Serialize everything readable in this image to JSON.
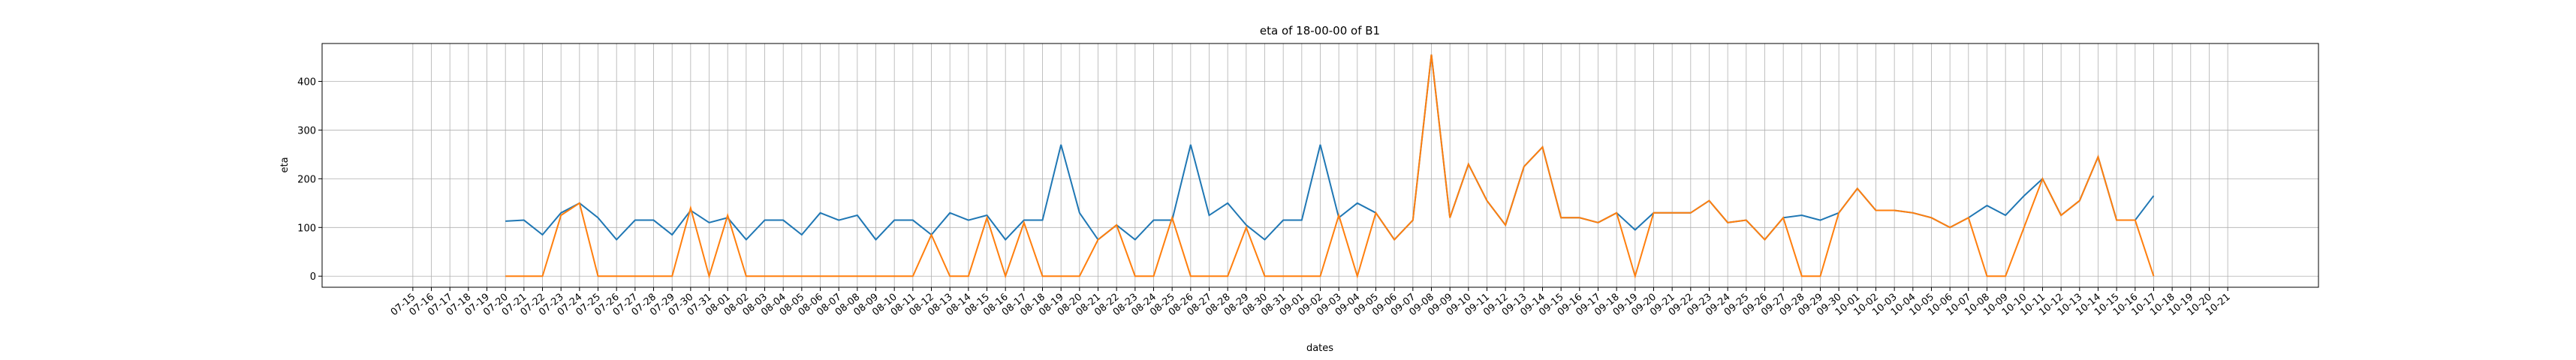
{
  "chart_data": {
    "type": "line",
    "title": "eta of 18-00-00 of B1",
    "xlabel": "dates",
    "ylabel": "eta",
    "categories": [
      "07-15",
      "07-16",
      "07-17",
      "07-18",
      "07-19",
      "07-20",
      "07-21",
      "07-22",
      "07-23",
      "07-24",
      "07-25",
      "07-26",
      "07-27",
      "07-28",
      "07-29",
      "07-30",
      "07-31",
      "08-01",
      "08-02",
      "08-03",
      "08-04",
      "08-05",
      "08-06",
      "08-07",
      "08-08",
      "08-09",
      "08-10",
      "08-11",
      "08-12",
      "08-13",
      "08-14",
      "08-15",
      "08-16",
      "08-17",
      "08-18",
      "08-19",
      "08-20",
      "08-21",
      "08-22",
      "08-23",
      "08-24",
      "08-25",
      "08-26",
      "08-27",
      "08-28",
      "08-29",
      "08-30",
      "08-31",
      "09-01",
      "09-02",
      "09-03",
      "09-04",
      "09-05",
      "09-06",
      "09-07",
      "09-08",
      "09-09",
      "09-10",
      "09-11",
      "09-12",
      "09-13",
      "09-14",
      "09-15",
      "09-16",
      "09-17",
      "09-18",
      "09-19",
      "09-20",
      "09-21",
      "09-22",
      "09-23",
      "09-24",
      "09-25",
      "09-26",
      "09-27",
      "09-28",
      "09-29",
      "09-30",
      "10-01",
      "10-02",
      "10-03",
      "10-04",
      "10-05",
      "10-06",
      "10-07",
      "10-08",
      "10-09",
      "10-10",
      "10-11",
      "10-12",
      "10-13",
      "10-14",
      "10-15",
      "10-16",
      "10-17",
      "10-18",
      "10-19",
      "10-20",
      "10-21"
    ],
    "series": [
      {
        "color": "#1f77b4",
        "values": [
          null,
          null,
          null,
          null,
          null,
          113,
          115,
          85,
          130,
          150,
          120,
          75,
          115,
          115,
          85,
          135,
          110,
          120,
          75,
          115,
          115,
          85,
          130,
          115,
          125,
          75,
          115,
          115,
          85,
          130,
          115,
          125,
          75,
          115,
          115,
          270,
          130,
          75,
          105,
          75,
          115,
          115,
          270,
          125,
          150,
          105,
          75,
          115,
          115,
          270,
          120,
          150,
          130,
          75,
          115,
          455,
          120,
          230,
          155,
          105,
          225,
          265,
          120,
          120,
          110,
          130,
          95,
          130,
          130,
          130,
          155,
          110,
          115,
          75,
          120,
          125,
          115,
          130,
          180,
          135,
          135,
          130,
          120,
          100,
          120,
          145,
          125,
          165,
          200,
          125,
          155,
          245,
          115,
          115,
          165,
          null,
          null,
          null,
          null
        ]
      },
      {
        "color": "#ff7f0e",
        "values": [
          null,
          null,
          null,
          null,
          null,
          0,
          0,
          0,
          125,
          150,
          0,
          0,
          0,
          0,
          0,
          140,
          0,
          125,
          0,
          0,
          0,
          0,
          0,
          0,
          0,
          0,
          0,
          0,
          85,
          0,
          0,
          120,
          0,
          110,
          0,
          0,
          0,
          75,
          105,
          0,
          0,
          120,
          0,
          0,
          0,
          100,
          0,
          0,
          0,
          0,
          125,
          0,
          130,
          75,
          115,
          455,
          120,
          230,
          155,
          105,
          225,
          265,
          120,
          120,
          110,
          130,
          0,
          130,
          130,
          130,
          155,
          110,
          115,
          75,
          120,
          0,
          0,
          130,
          180,
          135,
          135,
          130,
          120,
          100,
          120,
          0,
          0,
          100,
          200,
          125,
          155,
          245,
          115,
          115,
          0,
          null,
          null,
          null,
          null
        ]
      }
    ],
    "ylim": [
      -22.75,
      477.75
    ],
    "yticks": [
      0,
      100,
      200,
      300,
      400
    ],
    "grid": true
  }
}
